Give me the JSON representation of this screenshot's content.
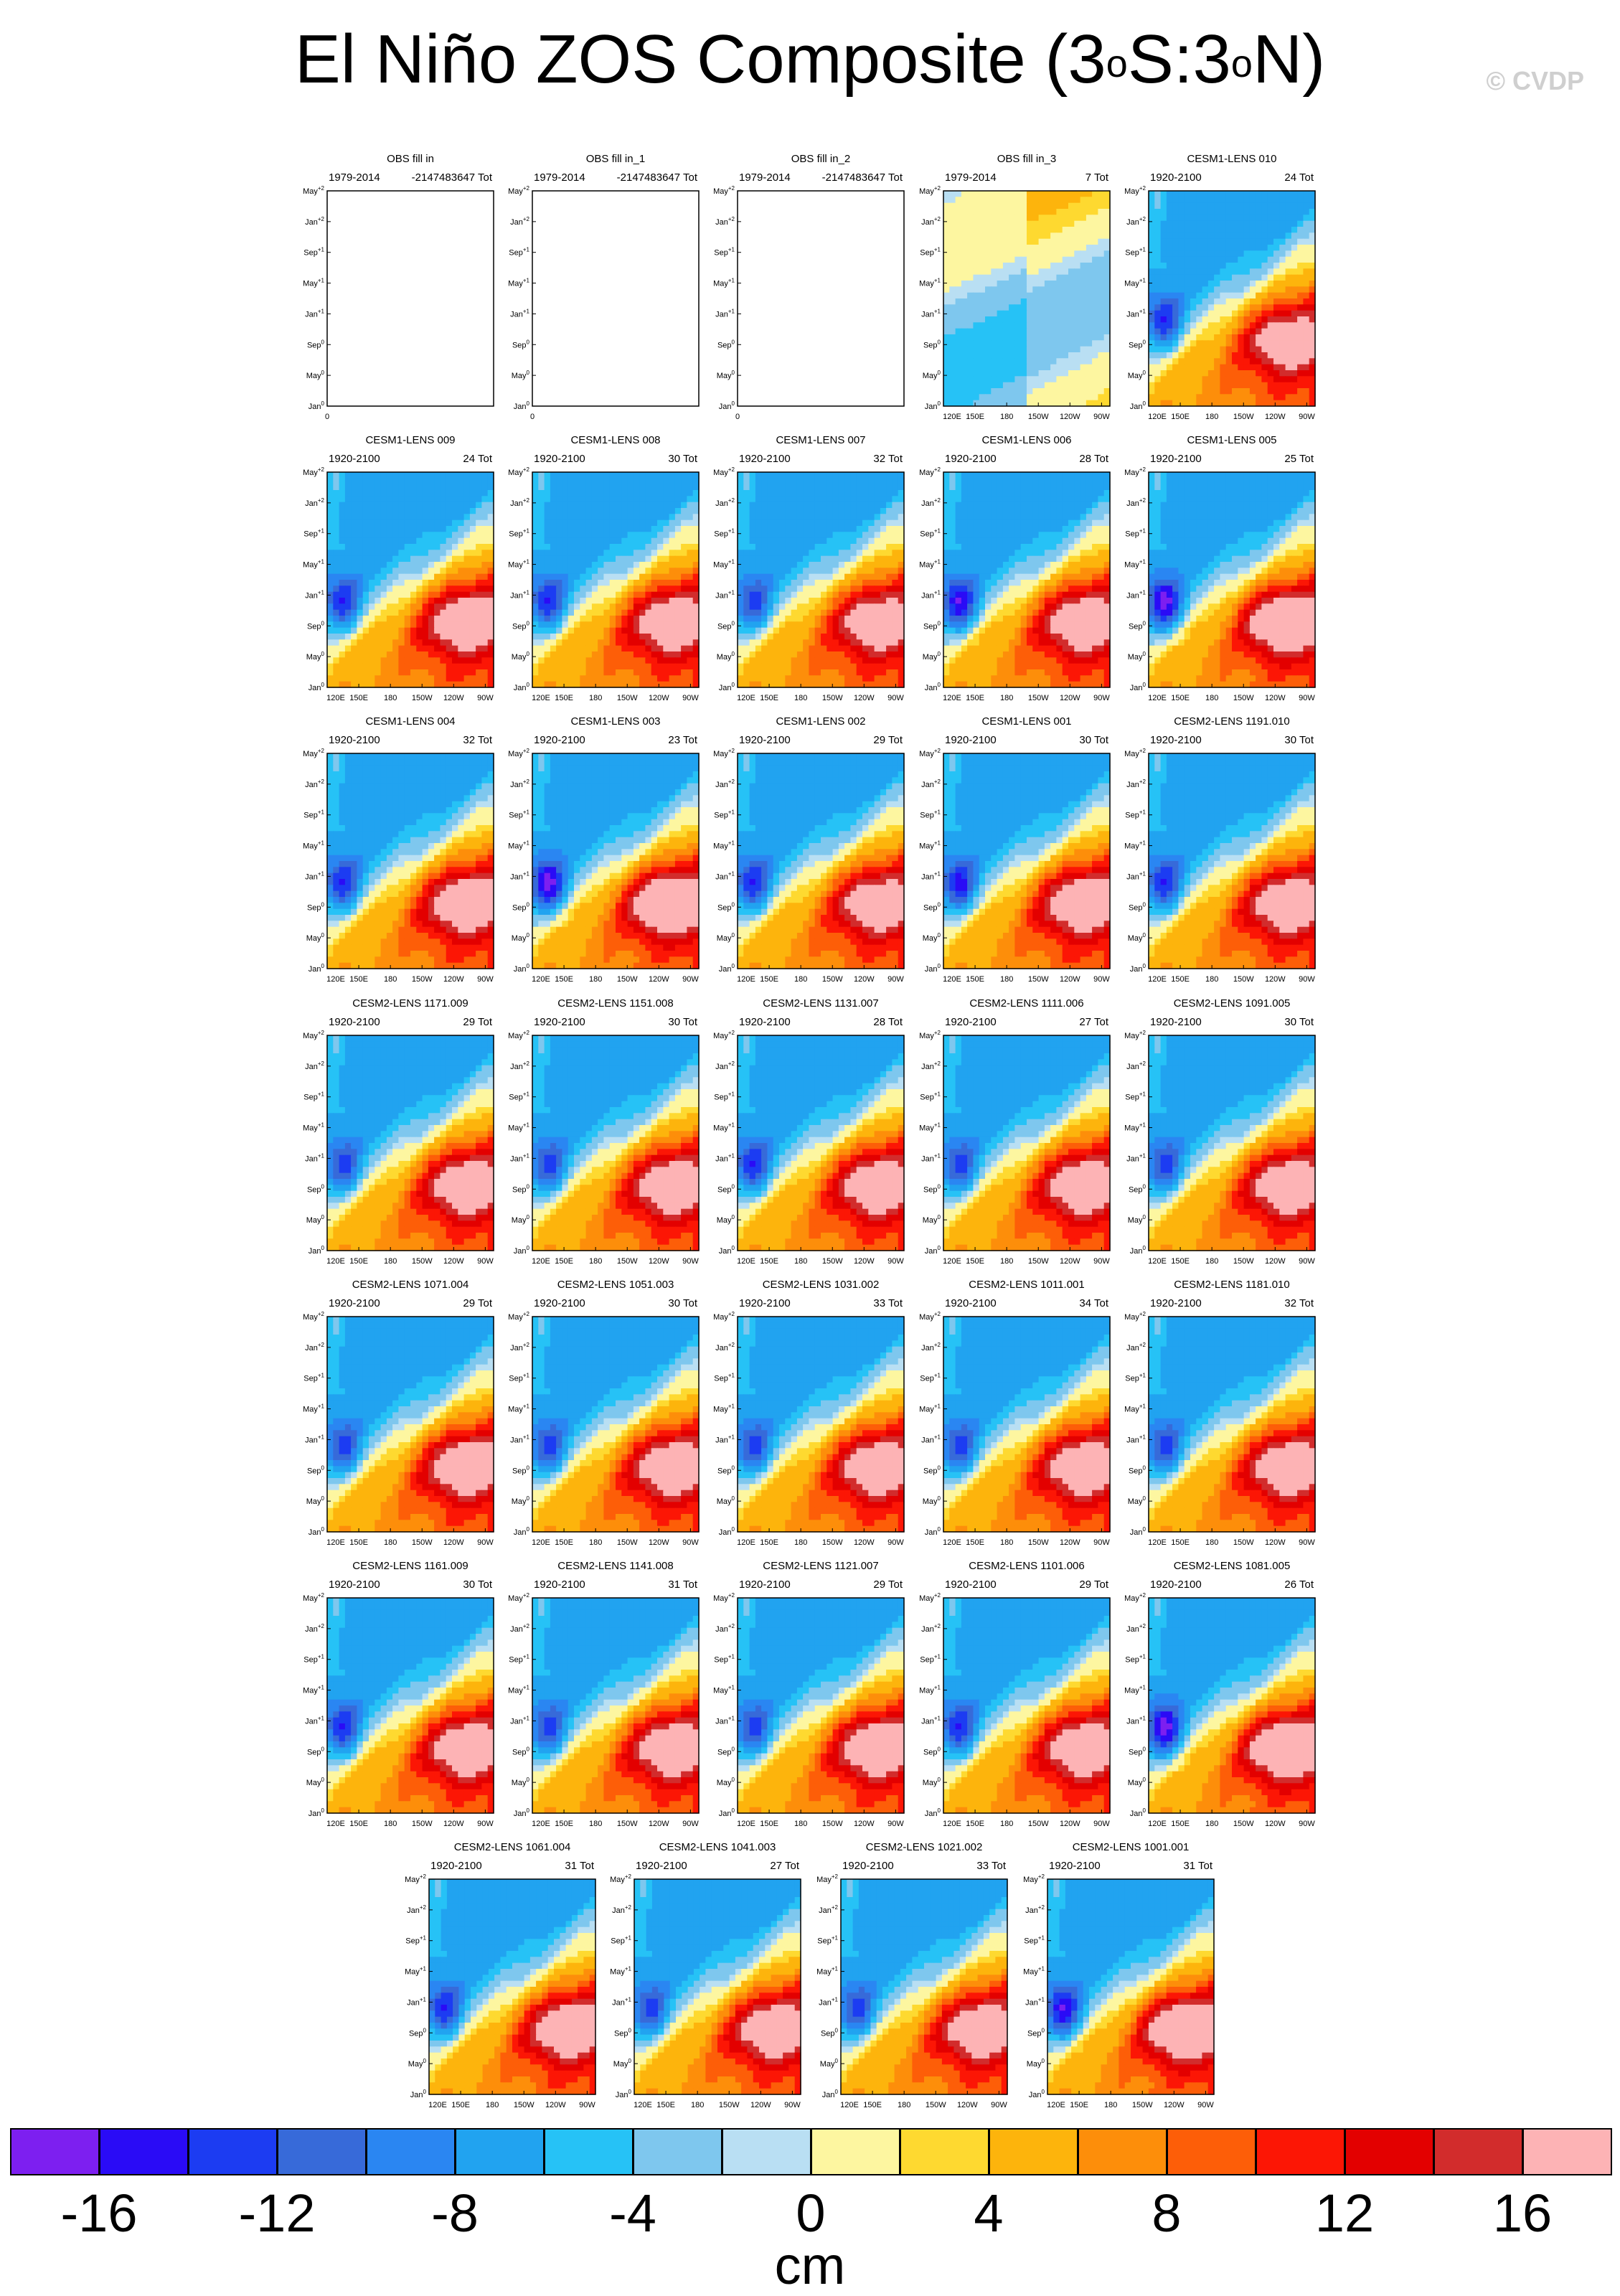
{
  "title": {
    "main": "El Niño ZOS Composite (3",
    "deg1": "o",
    "mid": "S:3",
    "deg2": "o",
    "tail": "N)"
  },
  "watermark": "© CVDP",
  "axis_ticks": {
    "y": [
      "May+2",
      "Jan+2",
      "Sep+1",
      "May+1",
      "Jan+1",
      "Sep0",
      "May0",
      "Jan0"
    ],
    "x": [
      "120E",
      "150E",
      "180",
      "150W",
      "120W",
      "90W"
    ]
  },
  "colorbar": {
    "colors": [
      "#7d1ff0",
      "#2a0bf6",
      "#1c3cf2",
      "#376ad9",
      "#2a86f2",
      "#21a3f0",
      "#26c2f6",
      "#7ec7ee",
      "#b9dff3",
      "#fdf6a0",
      "#fed930",
      "#fdb40c",
      "#fd8e0a",
      "#fd5e08",
      "#fc1605",
      "#e30000",
      "#d22c2c",
      "#fdb3b5"
    ],
    "tick_labels": [
      "-16",
      "-12",
      "-8",
      "-4",
      "0",
      "4",
      "8",
      "12",
      "16"
    ],
    "units": "cm"
  },
  "chart_data": {
    "type": "heatmap",
    "variable": "ZOS",
    "units": "cm",
    "levels": [
      -16,
      -14,
      -12,
      -10,
      -8,
      -6,
      -4,
      -2,
      -1,
      1,
      2,
      4,
      6,
      8,
      10,
      12,
      14,
      16
    ],
    "panels": [
      {
        "name": "OBS fill in",
        "years": "1979-2014",
        "count": "-2147483647 Tot",
        "empty": true,
        "peak": 0,
        "west": 0,
        "tilt": 0
      },
      {
        "name": "OBS fill in_1",
        "years": "1979-2014",
        "count": "-2147483647 Tot",
        "empty": true,
        "peak": 0,
        "west": 0,
        "tilt": 0
      },
      {
        "name": "OBS fill in_2",
        "years": "1979-2014",
        "count": "-2147483647 Tot",
        "empty": true,
        "peak": 0,
        "west": 0,
        "tilt": 0
      },
      {
        "name": "OBS fill in_3",
        "years": "1979-2014",
        "count": "7 Tot",
        "empty": false,
        "peak": 0.5,
        "west": -4,
        "tilt": 0
      },
      {
        "name": "CESM1-LENS 010",
        "years": "1920-2100",
        "count": "24 Tot",
        "empty": false,
        "peak": 12,
        "west": -9,
        "tilt": 1
      },
      {
        "name": "CESM1-LENS 009",
        "years": "1920-2100",
        "count": "24 Tot",
        "empty": false,
        "peak": 13,
        "west": -9,
        "tilt": 1
      },
      {
        "name": "CESM1-LENS 008",
        "years": "1920-2100",
        "count": "30 Tot",
        "empty": false,
        "peak": 12.5,
        "west": -9,
        "tilt": 1
      },
      {
        "name": "CESM1-LENS 007",
        "years": "1920-2100",
        "count": "32 Tot",
        "empty": false,
        "peak": 12,
        "west": -8,
        "tilt": 1
      },
      {
        "name": "CESM1-LENS 006",
        "years": "1920-2100",
        "count": "28 Tot",
        "empty": false,
        "peak": 12.5,
        "west": -11,
        "tilt": 1
      },
      {
        "name": "CESM1-LENS 005",
        "years": "1920-2100",
        "count": "25 Tot",
        "empty": false,
        "peak": 15,
        "west": -12,
        "tilt": 1
      },
      {
        "name": "CESM1-LENS 004",
        "years": "1920-2100",
        "count": "32 Tot",
        "empty": false,
        "peak": 13,
        "west": -9,
        "tilt": 1
      },
      {
        "name": "CESM1-LENS 003",
        "years": "1920-2100",
        "count": "23 Tot",
        "empty": false,
        "peak": 15.5,
        "west": -12,
        "tilt": 1
      },
      {
        "name": "CESM1-LENS 002",
        "years": "1920-2100",
        "count": "29 Tot",
        "empty": false,
        "peak": 12,
        "west": -9,
        "tilt": 1
      },
      {
        "name": "CESM1-LENS 001",
        "years": "1920-2100",
        "count": "30 Tot",
        "empty": false,
        "peak": 13,
        "west": -10,
        "tilt": 1
      },
      {
        "name": "CESM2-LENS 1191.010",
        "years": "1920-2100",
        "count": "30 Tot",
        "empty": false,
        "peak": 12.5,
        "west": -9,
        "tilt": 1
      },
      {
        "name": "CESM2-LENS 1171.009",
        "years": "1920-2100",
        "count": "29 Tot",
        "empty": false,
        "peak": 12.5,
        "west": -8,
        "tilt": 1
      },
      {
        "name": "CESM2-LENS 1151.008",
        "years": "1920-2100",
        "count": "30 Tot",
        "empty": false,
        "peak": 12.5,
        "west": -8,
        "tilt": 1
      },
      {
        "name": "CESM2-LENS 1131.007",
        "years": "1920-2100",
        "count": "28 Tot",
        "empty": false,
        "peak": 12.5,
        "west": -9,
        "tilt": 1
      },
      {
        "name": "CESM2-LENS 1111.006",
        "years": "1920-2100",
        "count": "27 Tot",
        "empty": false,
        "peak": 12.5,
        "west": -8,
        "tilt": 1
      },
      {
        "name": "CESM2-LENS 1091.005",
        "years": "1920-2100",
        "count": "30 Tot",
        "empty": false,
        "peak": 12.5,
        "west": -8,
        "tilt": 1
      },
      {
        "name": "CESM2-LENS 1071.004",
        "years": "1920-2100",
        "count": "29 Tot",
        "empty": false,
        "peak": 13,
        "west": -8,
        "tilt": 1
      },
      {
        "name": "CESM2-LENS 1051.003",
        "years": "1920-2100",
        "count": "30 Tot",
        "empty": false,
        "peak": 12.5,
        "west": -8,
        "tilt": 1
      },
      {
        "name": "CESM2-LENS 1031.002",
        "years": "1920-2100",
        "count": "33 Tot",
        "empty": false,
        "peak": 12.5,
        "west": -8,
        "tilt": 1
      },
      {
        "name": "CESM2-LENS 1011.001",
        "years": "1920-2100",
        "count": "34 Tot",
        "empty": false,
        "peak": 12.5,
        "west": -8,
        "tilt": 1
      },
      {
        "name": "CESM2-LENS 1181.010",
        "years": "1920-2100",
        "count": "32 Tot",
        "empty": false,
        "peak": 12.5,
        "west": -8,
        "tilt": 1
      },
      {
        "name": "CESM2-LENS 1161.009",
        "years": "1920-2100",
        "count": "30 Tot",
        "empty": false,
        "peak": 12.5,
        "west": -9,
        "tilt": 1
      },
      {
        "name": "CESM2-LENS 1141.008",
        "years": "1920-2100",
        "count": "31 Tot",
        "empty": false,
        "peak": 12.5,
        "west": -8,
        "tilt": 1
      },
      {
        "name": "CESM2-LENS 1121.007",
        "years": "1920-2100",
        "count": "29 Tot",
        "empty": false,
        "peak": 13,
        "west": -8,
        "tilt": 1
      },
      {
        "name": "CESM2-LENS 1101.006",
        "years": "1920-2100",
        "count": "29 Tot",
        "empty": false,
        "peak": 12.5,
        "west": -9,
        "tilt": 1
      },
      {
        "name": "CESM2-LENS 1081.005",
        "years": "1920-2100",
        "count": "26 Tot",
        "empty": false,
        "peak": 15,
        "west": -12,
        "tilt": 1
      },
      {
        "name": "CESM2-LENS 1061.004",
        "years": "1920-2100",
        "count": "31 Tot",
        "empty": false,
        "peak": 13,
        "west": -9,
        "tilt": 1
      },
      {
        "name": "CESM2-LENS 1041.003",
        "years": "1920-2100",
        "count": "27 Tot",
        "empty": false,
        "peak": 12.5,
        "west": -8,
        "tilt": 1
      },
      {
        "name": "CESM2-LENS 1021.002",
        "years": "1920-2100",
        "count": "33 Tot",
        "empty": false,
        "peak": 12.5,
        "west": -8,
        "tilt": 1
      },
      {
        "name": "CESM2-LENS 1001.001",
        "years": "1920-2100",
        "count": "31 Tot",
        "empty": false,
        "peak": 15,
        "west": -11,
        "tilt": 1
      }
    ]
  }
}
